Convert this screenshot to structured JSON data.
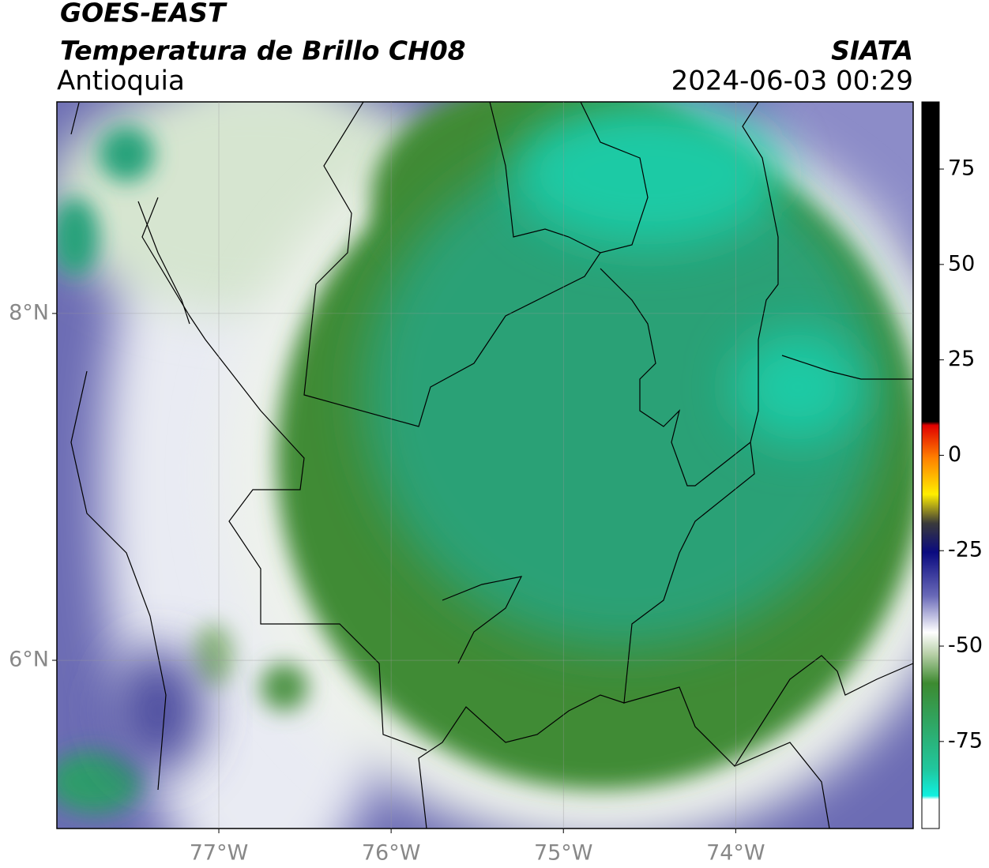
{
  "header": {
    "title": "GOES-EAST",
    "subtitle": "Temperatura de Brillo CH08",
    "region": "Antioquia",
    "source": "SIATA",
    "timestamp": "2024-06-03 00:29"
  },
  "map": {
    "lonlim": [
      -77.94,
      -72.97
    ],
    "latlim": [
      5.03,
      9.22
    ],
    "lonticks": [
      {
        "value": -77,
        "label": "77°W"
      },
      {
        "value": -76,
        "label": "76°W"
      },
      {
        "value": -75,
        "label": "75°W"
      },
      {
        "value": -74,
        "label": "74°W"
      }
    ],
    "latticks": [
      {
        "value": 8,
        "label": "8°N"
      },
      {
        "value": 6,
        "label": "6°N"
      }
    ],
    "grid": true
  },
  "colorbar": {
    "lim": [
      -97.8,
      92.6
    ],
    "ticks": [
      75,
      50,
      25,
      0,
      -25,
      -50,
      -75
    ]
  }
}
